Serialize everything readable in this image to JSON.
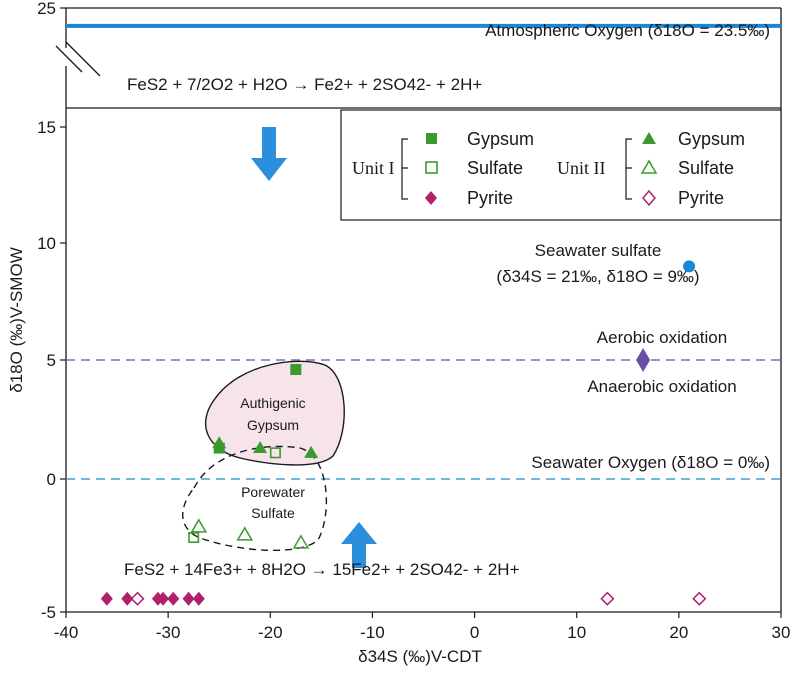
{
  "chart_data": {
    "type": "scatter",
    "xlabel": "δ34S (‰)V-CDT",
    "ylabel": "δ18O (‰)V-SMOW",
    "xlim": [
      -40,
      30
    ],
    "ylim": [
      -5,
      25
    ],
    "axis_break": [
      16,
      22
    ],
    "x_ticks": [
      "-40",
      "-30",
      "-20",
      "-10",
      "0",
      "10",
      "20",
      "30"
    ],
    "y_ticks": [
      "-5",
      "0",
      "5",
      "10",
      "15",
      "25"
    ],
    "grid": false,
    "legend_position": "top-right",
    "legend": {
      "unit1_label": "Unit I",
      "unit2_label": "Unit II",
      "gypsum": "Gypsum",
      "sulfate": "Sulfate",
      "pyrite": "Pyrite"
    },
    "series": [
      {
        "name": "Unit I Gypsum",
        "marker": "square-filled",
        "color": "#3a9a2e",
        "x": [
          -17.5,
          -25
        ],
        "y": [
          4.6,
          1.3
        ]
      },
      {
        "name": "Unit I Sulfate",
        "marker": "square-open",
        "color": "#3a9a2e",
        "x": [
          -19.5,
          -27.5
        ],
        "y": [
          1.1,
          -2.2
        ]
      },
      {
        "name": "Unit I Pyrite",
        "marker": "diamond-filled",
        "color": "#b21f6b",
        "x": [
          -36,
          -34,
          -31,
          -30.5,
          -29.5,
          -28,
          -27
        ],
        "y": [
          -4.5,
          -4.5,
          -4.5,
          -4.5,
          -4.5,
          -4.5,
          -4.5
        ]
      },
      {
        "name": "Unit II Gypsum",
        "marker": "triangle-filled",
        "color": "#3a9a2e",
        "x": [
          -25,
          -21,
          -16
        ],
        "y": [
          1.5,
          1.3,
          1.1
        ]
      },
      {
        "name": "Unit II Sulfate",
        "marker": "triangle-open",
        "color": "#3a9a2e",
        "x": [
          -27,
          -22.5,
          -17
        ],
        "y": [
          -1.8,
          -2.1,
          -2.4
        ]
      },
      {
        "name": "Unit II Pyrite",
        "marker": "diamond-open",
        "color": "#b21f6b",
        "x": [
          -33,
          13,
          22
        ],
        "y": [
          -4.5,
          -4.5,
          -4.5
        ]
      }
    ],
    "seawater_sulfate": {
      "x": 21,
      "y": 9,
      "color": "#1a86d6",
      "label": "Seawater sulfate",
      "sublabel": "(δ34S = 21‰, δ18O = 9‰)"
    },
    "oxidation_marker": {
      "x": 16.5,
      "y": 5,
      "color": "#6a4fa3"
    },
    "lines": [
      {
        "name": "atmospheric-oxygen",
        "y": 23.5,
        "style": "solid",
        "color": "#1a86d6",
        "label": "Atmospheric Oxygen (δ18O = 23.5‰)"
      },
      {
        "name": "oxidation-boundary",
        "y": 5,
        "style": "dashed",
        "color": "#7b6fb8",
        "label_above": "Aerobic oxidation",
        "label_below": "Anaerobic oxidation"
      },
      {
        "name": "seawater-oxygen",
        "y": 0,
        "style": "dashed",
        "color": "#3f9ddb",
        "label": "Seawater Oxygen (δ18O = 0‰)"
      }
    ],
    "regions": [
      {
        "name": "authigenic-gypsum",
        "label_line1": "Authigenic",
        "label_line2": "Gypsum",
        "fill": "#f7e3ea"
      },
      {
        "name": "porewater-sulfate",
        "label_line1": "Porewater",
        "label_line2": "Sulfate",
        "fill": "none"
      }
    ],
    "annotations": {
      "top_reaction": "FeS2 + 7/2O2 + H2O → Fe2+ + 2SO42- + 2H+",
      "bottom_reaction": "FeS2 + 14Fe3+ + 8H2O → 15Fe2+ + 2SO42- + 2H+"
    },
    "arrow_color": "#2b8fdc"
  }
}
